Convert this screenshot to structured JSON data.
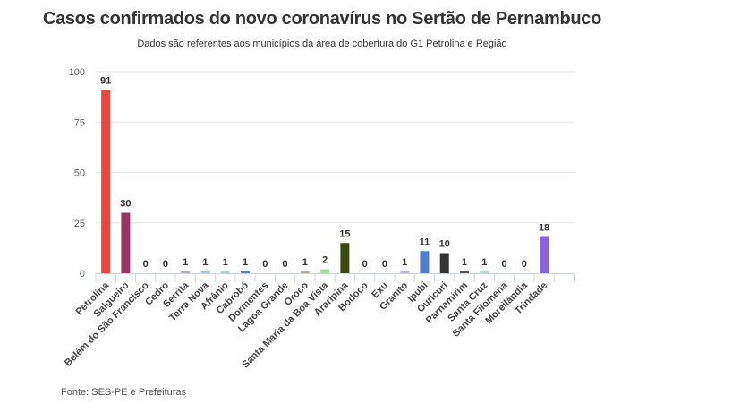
{
  "chart_data": {
    "type": "bar",
    "title": "Casos confirmados do novo coronavírus no Sertão de Pernambuco",
    "subtitle": "Dados são referentes aos municípios da área de cobertura do G1 Petrolina e Região",
    "source": "Fonte: SES-PE e Prefeituras",
    "xlabel": "",
    "ylabel": "",
    "ylim": [
      0,
      100
    ],
    "yticks": [
      0,
      25,
      50,
      75,
      100
    ],
    "grid": true,
    "categories": [
      "Petrolina",
      "Salgueiro",
      "Belém do São Francisco",
      "Cedro",
      "Serrita",
      "Terra Nova",
      "Afrânio",
      "Cabrobó",
      "Dormentes",
      "Lagoa Grande",
      "Orocó",
      "Santa Maria da Boa Vista",
      "Araripina",
      "Bodocó",
      "Exu",
      "Granito",
      "Ipubi",
      "Ouricuri",
      "Parnamirim",
      "Santa Cruz",
      "Santa Filomena",
      "Moreilândia",
      "Trindade"
    ],
    "values": [
      91,
      30,
      0,
      0,
      1,
      1,
      1,
      1,
      0,
      0,
      1,
      2,
      15,
      0,
      0,
      1,
      11,
      10,
      1,
      1,
      0,
      0,
      18
    ],
    "colors": [
      "#e8473f",
      "#9b3463",
      "#cccccc",
      "#cccccc",
      "#c9a0c9",
      "#9fc5e8",
      "#a8d8c8",
      "#4e7fcf",
      "#cccccc",
      "#cccccc",
      "#b8a898",
      "#9be39b",
      "#3b4a0c",
      "#cccccc",
      "#cccccc",
      "#c8a8e8",
      "#4e7fcf",
      "#333333",
      "#555555",
      "#a8e0b8",
      "#cccccc",
      "#cccccc",
      "#8a62e0"
    ]
  }
}
